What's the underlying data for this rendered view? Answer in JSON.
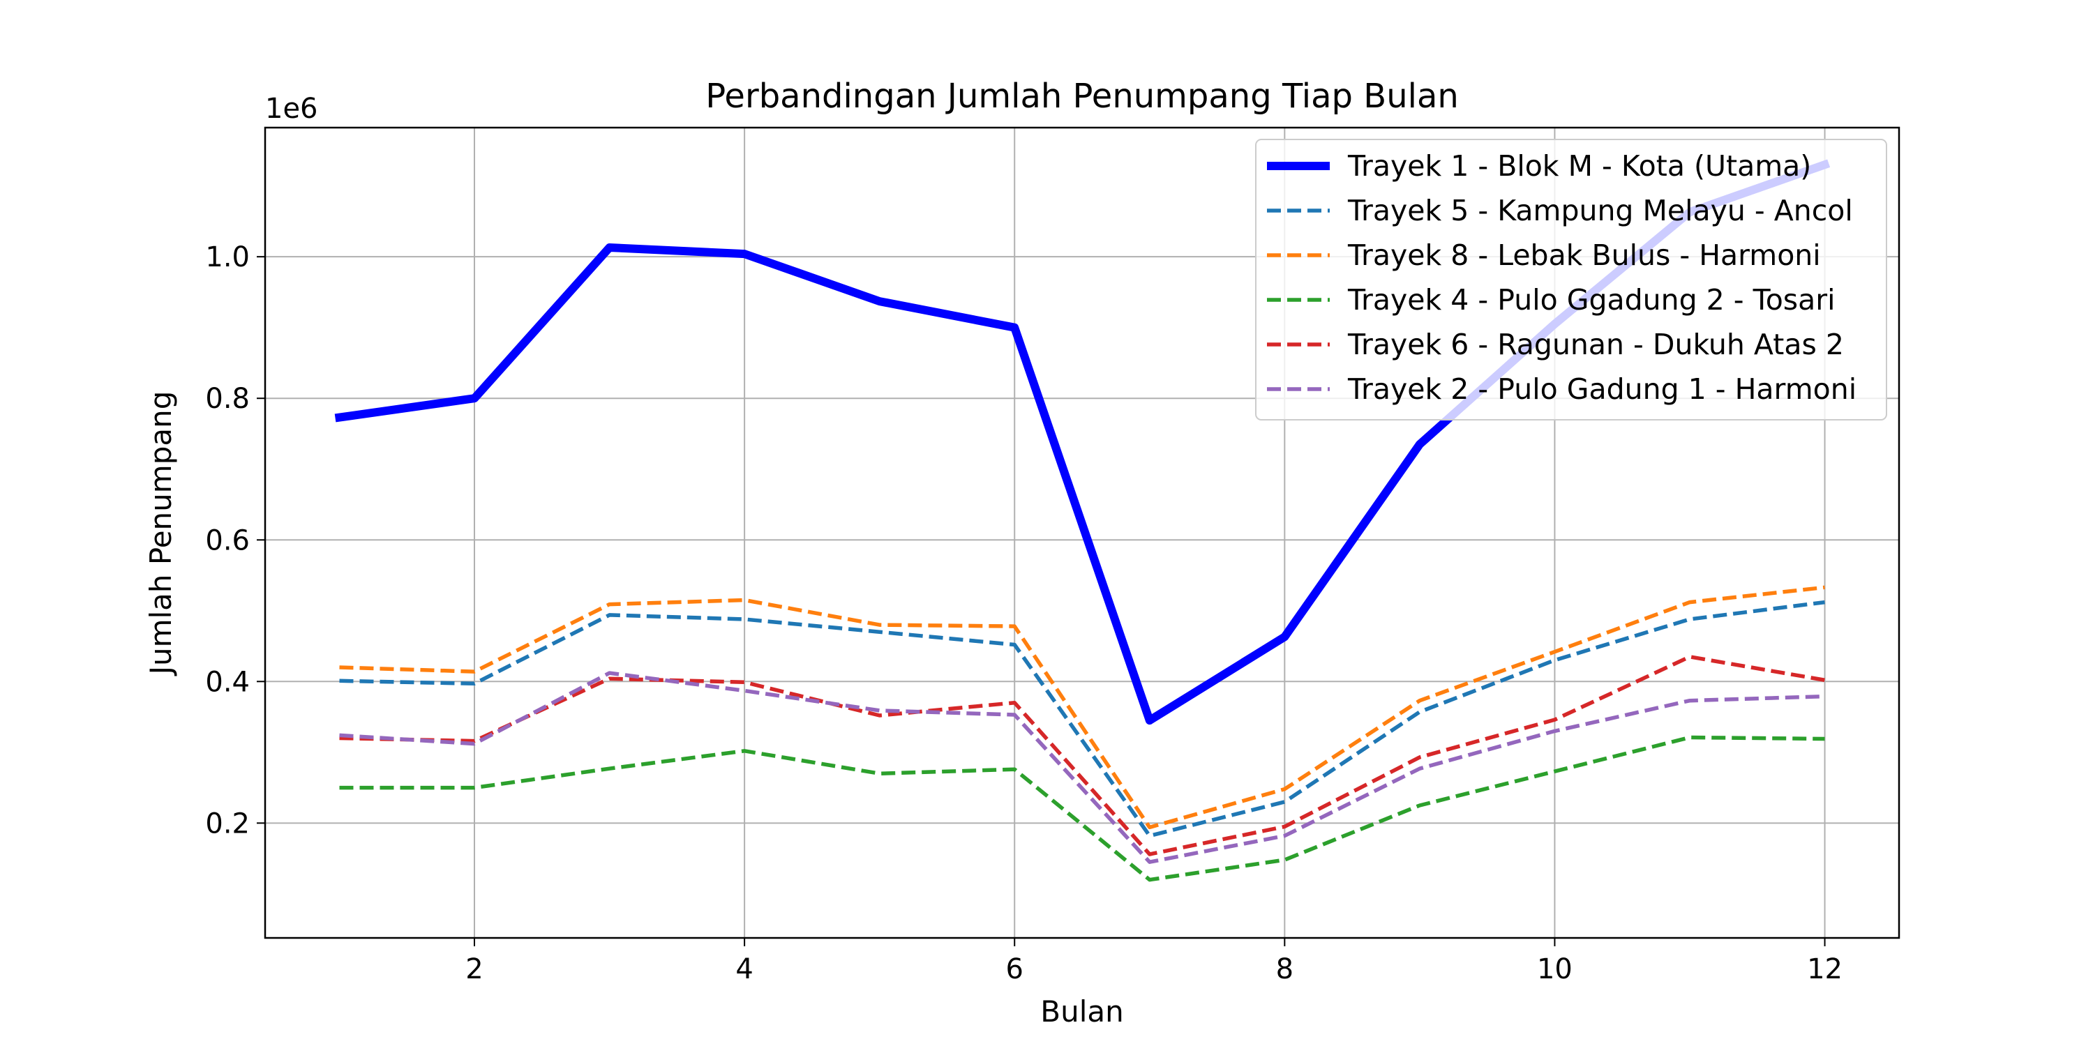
{
  "chart_data": {
    "type": "line",
    "title": "Perbandingan Jumlah Penumpang Tiap Bulan",
    "xlabel": "Bulan",
    "ylabel": "Jumlah Penumpang",
    "y_offset_label": "1e6",
    "xlim": [
      0.45,
      12.55
    ],
    "ylim": [
      0.0378,
      1.1824
    ],
    "x_ticks": [
      2,
      4,
      6,
      8,
      10,
      12
    ],
    "x_tick_labels": [
      "2",
      "4",
      "6",
      "8",
      "10",
      "12"
    ],
    "y_ticks": [
      0.2,
      0.4,
      0.6,
      0.8,
      1.0
    ],
    "y_tick_labels": [
      "0.2",
      "0.4",
      "0.6",
      "0.8",
      "1.0"
    ],
    "grid": true,
    "legend_position": "top-right",
    "x": [
      1,
      2,
      3,
      4,
      5,
      6,
      7,
      8,
      9,
      10,
      11,
      12
    ],
    "series": [
      {
        "name": "Trayek 1 - Blok M - Kota (Utama)",
        "color": "#0000ff",
        "style": "solid-thick",
        "values": [
          0.773,
          0.8,
          1.013,
          1.004,
          0.937,
          0.9,
          0.345,
          0.463,
          0.735,
          0.905,
          1.063,
          1.13
        ]
      },
      {
        "name": "Trayek 5 - Kampung Melayu - Ancol",
        "color": "#1f77b4",
        "style": "dashed",
        "values": [
          0.401,
          0.397,
          0.494,
          0.488,
          0.47,
          0.452,
          0.182,
          0.23,
          0.357,
          0.43,
          0.488,
          0.512
        ]
      },
      {
        "name": "Trayek 8 - Lebak Bulus - Harmoni",
        "color": "#ff7f0e",
        "style": "dashed",
        "values": [
          0.42,
          0.414,
          0.509,
          0.515,
          0.48,
          0.478,
          0.194,
          0.248,
          0.373,
          0.442,
          0.512,
          0.533
        ]
      },
      {
        "name": "Trayek 4 - Pulo Ggadung 2 - Tosari",
        "color": "#2ca02c",
        "style": "dashed",
        "values": [
          0.25,
          0.25,
          0.277,
          0.302,
          0.27,
          0.276,
          0.12,
          0.148,
          0.225,
          0.273,
          0.321,
          0.319
        ]
      },
      {
        "name": "Trayek 6 - Ragunan - Dukuh Atas 2",
        "color": "#d62728",
        "style": "dashed",
        "values": [
          0.32,
          0.316,
          0.404,
          0.399,
          0.352,
          0.37,
          0.156,
          0.195,
          0.293,
          0.346,
          0.435,
          0.402
        ]
      },
      {
        "name": "Trayek 2 - Pulo Gadung 1 - Harmoni",
        "color": "#9467bd",
        "style": "dashed",
        "values": [
          0.324,
          0.312,
          0.412,
          0.387,
          0.359,
          0.353,
          0.145,
          0.182,
          0.277,
          0.33,
          0.373,
          0.379
        ]
      }
    ]
  }
}
